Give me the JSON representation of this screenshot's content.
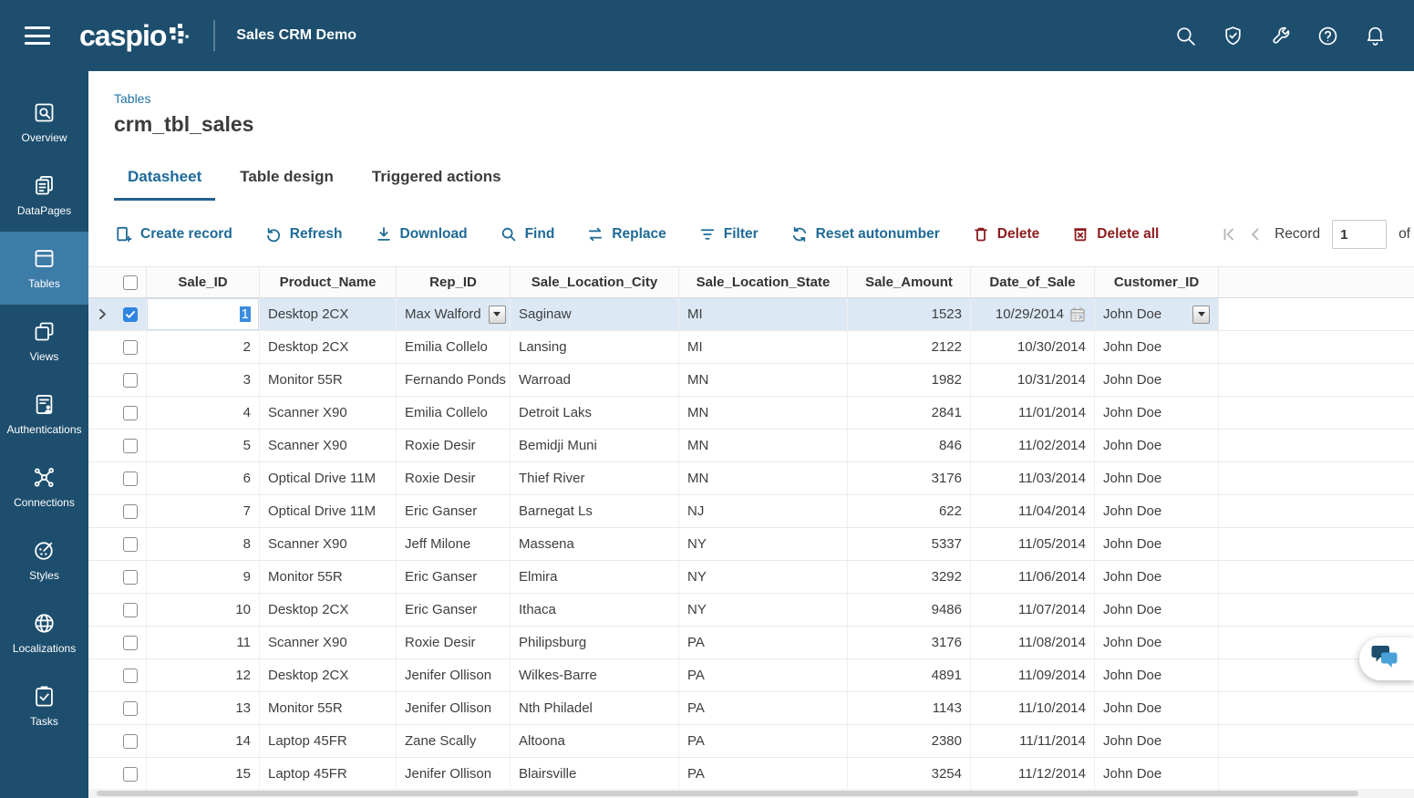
{
  "colors": {
    "navbar-bg": "#1d4e6e",
    "sidebar-active-bg": "#3e7ca8",
    "accent-blue": "#1f6a96",
    "breadcrumb-blue": "#2273a5",
    "danger-red": "#8e1d20",
    "selected-row-bg": "#dce8f4",
    "selection-highlight": "#3a8dde",
    "checkbox-checked": "#2f84e0"
  },
  "topbar": {
    "brand": "caspio",
    "app_title": "Sales CRM Demo",
    "icons": [
      "search",
      "shield-check",
      "wrench",
      "help",
      "bell"
    ]
  },
  "sidebar": {
    "items": [
      {
        "label": "Overview",
        "icon": "overview",
        "active": false
      },
      {
        "label": "DataPages",
        "icon": "datapages",
        "active": false
      },
      {
        "label": "Tables",
        "icon": "tables",
        "active": true
      },
      {
        "label": "Views",
        "icon": "views",
        "active": false
      },
      {
        "label": "Authentications",
        "icon": "authentications",
        "active": false
      },
      {
        "label": "Connections",
        "icon": "connections",
        "active": false
      },
      {
        "label": "Styles",
        "icon": "styles",
        "active": false
      },
      {
        "label": "Localizations",
        "icon": "localizations",
        "active": false
      },
      {
        "label": "Tasks",
        "icon": "tasks",
        "active": false
      }
    ]
  },
  "page": {
    "breadcrumb": "Tables",
    "title": "crm_tbl_sales",
    "tabs": [
      {
        "label": "Datasheet",
        "active": true
      },
      {
        "label": "Table design",
        "active": false
      },
      {
        "label": "Triggered actions",
        "active": false
      }
    ]
  },
  "toolbar": {
    "buttons": [
      {
        "label": "Create record",
        "icon": "create-record",
        "style": "blue"
      },
      {
        "label": "Refresh",
        "icon": "refresh",
        "style": "blue"
      },
      {
        "label": "Download",
        "icon": "download",
        "style": "blue"
      },
      {
        "label": "Find",
        "icon": "find",
        "style": "blue"
      },
      {
        "label": "Replace",
        "icon": "replace",
        "style": "blue"
      },
      {
        "label": "Filter",
        "icon": "filter",
        "style": "blue"
      },
      {
        "label": "Reset autonumber",
        "icon": "reset-autonumber",
        "style": "blue"
      },
      {
        "label": "Delete",
        "icon": "delete",
        "style": "red"
      },
      {
        "label": "Delete all",
        "icon": "delete-all",
        "style": "red"
      }
    ],
    "record_nav": {
      "record_label": "Record",
      "value": "1",
      "of_label": "of"
    }
  },
  "table": {
    "columns": [
      {
        "key": "sale_id",
        "label": "Sale_ID",
        "align": "right"
      },
      {
        "key": "product_name",
        "label": "Product_Name",
        "align": "left"
      },
      {
        "key": "rep_id",
        "label": "Rep_ID",
        "align": "left"
      },
      {
        "key": "city",
        "label": "Sale_Location_City",
        "align": "left"
      },
      {
        "key": "state",
        "label": "Sale_Location_State",
        "align": "left"
      },
      {
        "key": "amount",
        "label": "Sale_Amount",
        "align": "right"
      },
      {
        "key": "date",
        "label": "Date_of_Sale",
        "align": "right"
      },
      {
        "key": "customer_id",
        "label": "Customer_ID",
        "align": "left"
      }
    ],
    "rows": [
      {
        "sale_id": "1",
        "product_name": "Desktop 2CX",
        "rep_id": "Max Walford",
        "city": "Saginaw",
        "state": "MI",
        "amount": "1523",
        "date": "10/29/2014",
        "customer_id": "John Doe",
        "selected": true
      },
      {
        "sale_id": "2",
        "product_name": "Desktop 2CX",
        "rep_id": "Emilia Collelo",
        "city": "Lansing",
        "state": "MI",
        "amount": "2122",
        "date": "10/30/2014",
        "customer_id": "John Doe"
      },
      {
        "sale_id": "3",
        "product_name": "Monitor 55R",
        "rep_id": "Fernando Ponds",
        "city": "Warroad",
        "state": "MN",
        "amount": "1982",
        "date": "10/31/2014",
        "customer_id": "John Doe"
      },
      {
        "sale_id": "4",
        "product_name": "Scanner X90",
        "rep_id": "Emilia Collelo",
        "city": "Detroit Laks",
        "state": "MN",
        "amount": "2841",
        "date": "11/01/2014",
        "customer_id": "John Doe"
      },
      {
        "sale_id": "5",
        "product_name": "Scanner X90",
        "rep_id": "Roxie Desir",
        "city": "Bemidji Muni",
        "state": "MN",
        "amount": "846",
        "date": "11/02/2014",
        "customer_id": "John Doe"
      },
      {
        "sale_id": "6",
        "product_name": "Optical Drive 11M",
        "rep_id": "Roxie Desir",
        "city": "Thief River",
        "state": "MN",
        "amount": "3176",
        "date": "11/03/2014",
        "customer_id": "John Doe"
      },
      {
        "sale_id": "7",
        "product_name": "Optical Drive 11M",
        "rep_id": "Eric Ganser",
        "city": "Barnegat Ls",
        "state": "NJ",
        "amount": "622",
        "date": "11/04/2014",
        "customer_id": "John Doe"
      },
      {
        "sale_id": "8",
        "product_name": "Scanner X90",
        "rep_id": "Jeff Milone",
        "city": "Massena",
        "state": "NY",
        "amount": "5337",
        "date": "11/05/2014",
        "customer_id": "John Doe"
      },
      {
        "sale_id": "9",
        "product_name": "Monitor 55R",
        "rep_id": "Eric Ganser",
        "city": "Elmira",
        "state": "NY",
        "amount": "3292",
        "date": "11/06/2014",
        "customer_id": "John Doe"
      },
      {
        "sale_id": "10",
        "product_name": "Desktop 2CX",
        "rep_id": "Eric Ganser",
        "city": "Ithaca",
        "state": "NY",
        "amount": "9486",
        "date": "11/07/2014",
        "customer_id": "John Doe"
      },
      {
        "sale_id": "11",
        "product_name": "Scanner X90",
        "rep_id": "Roxie Desir",
        "city": "Philipsburg",
        "state": "PA",
        "amount": "3176",
        "date": "11/08/2014",
        "customer_id": "John Doe"
      },
      {
        "sale_id": "12",
        "product_name": "Desktop 2CX",
        "rep_id": "Jenifer Ollison",
        "city": "Wilkes-Barre",
        "state": "PA",
        "amount": "4891",
        "date": "11/09/2014",
        "customer_id": "John Doe"
      },
      {
        "sale_id": "13",
        "product_name": "Monitor 55R",
        "rep_id": "Jenifer Ollison",
        "city": "Nth Philadel",
        "state": "PA",
        "amount": "1143",
        "date": "11/10/2014",
        "customer_id": "John Doe"
      },
      {
        "sale_id": "14",
        "product_name": "Laptop 45FR",
        "rep_id": "Zane Scally",
        "city": "Altoona",
        "state": "PA",
        "amount": "2380",
        "date": "11/11/2014",
        "customer_id": "John Doe"
      },
      {
        "sale_id": "15",
        "product_name": "Laptop 45FR",
        "rep_id": "Jenifer Ollison",
        "city": "Blairsville",
        "state": "PA",
        "amount": "3254",
        "date": "11/12/2014",
        "customer_id": "John Doe"
      }
    ]
  }
}
